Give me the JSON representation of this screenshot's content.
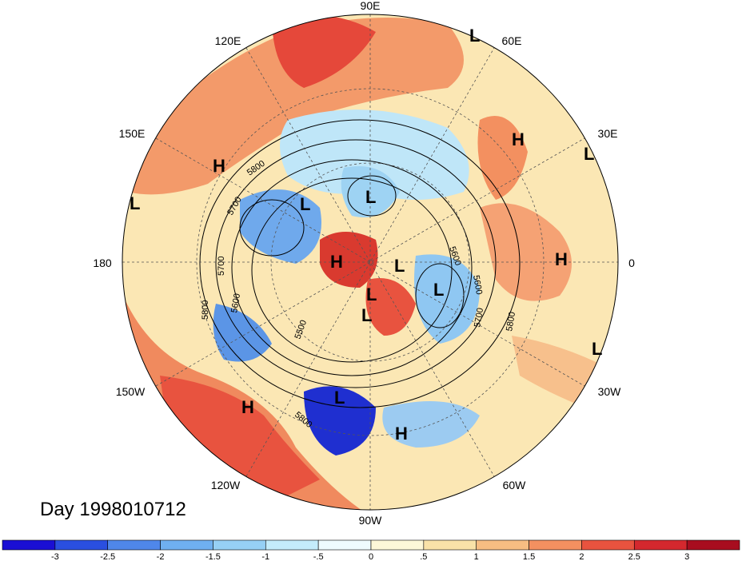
{
  "title": "Day 1998010712",
  "longitude_labels": {
    "e90": "90E",
    "e120": "120E",
    "e60": "60E",
    "e150": "150E",
    "e30": "30E",
    "d180": "180",
    "d0": "0",
    "w150": "150W",
    "w30": "30W",
    "w120": "120W",
    "w60": "60W",
    "w90": "90W"
  },
  "pressure_centers": [
    {
      "type": "L"
    },
    {
      "type": "L"
    },
    {
      "type": "H"
    },
    {
      "type": "L"
    },
    {
      "type": "H"
    },
    {
      "type": "L"
    },
    {
      "type": "L"
    },
    {
      "type": "H"
    },
    {
      "type": "L"
    },
    {
      "type": "L"
    },
    {
      "type": "L"
    },
    {
      "type": "H"
    },
    {
      "type": "L"
    },
    {
      "type": "L"
    },
    {
      "type": "H"
    },
    {
      "type": "L"
    },
    {
      "type": "H"
    }
  ],
  "contour_labels": [
    "5800",
    "5700",
    "5700",
    "5600",
    "5800",
    "5600",
    "5500",
    "5600",
    "5700",
    "5800",
    "5800"
  ],
  "colorbar": {
    "colors": [
      "#1a0fd4",
      "#2a4fe0",
      "#4f87ea",
      "#6fb0f0",
      "#96d0f5",
      "#c4ecfb",
      "#eefbfe",
      "#fdf8d8",
      "#f9e2a8",
      "#f7bd82",
      "#f39060",
      "#e8533f",
      "#d4282e",
      "#a80d1f"
    ],
    "ticks": [
      "-3",
      "-2.5",
      "-2",
      "-1.5",
      "-1",
      "-.5",
      "0",
      ".5",
      "1",
      "1.5",
      "2",
      "2.5",
      "3"
    ]
  }
}
